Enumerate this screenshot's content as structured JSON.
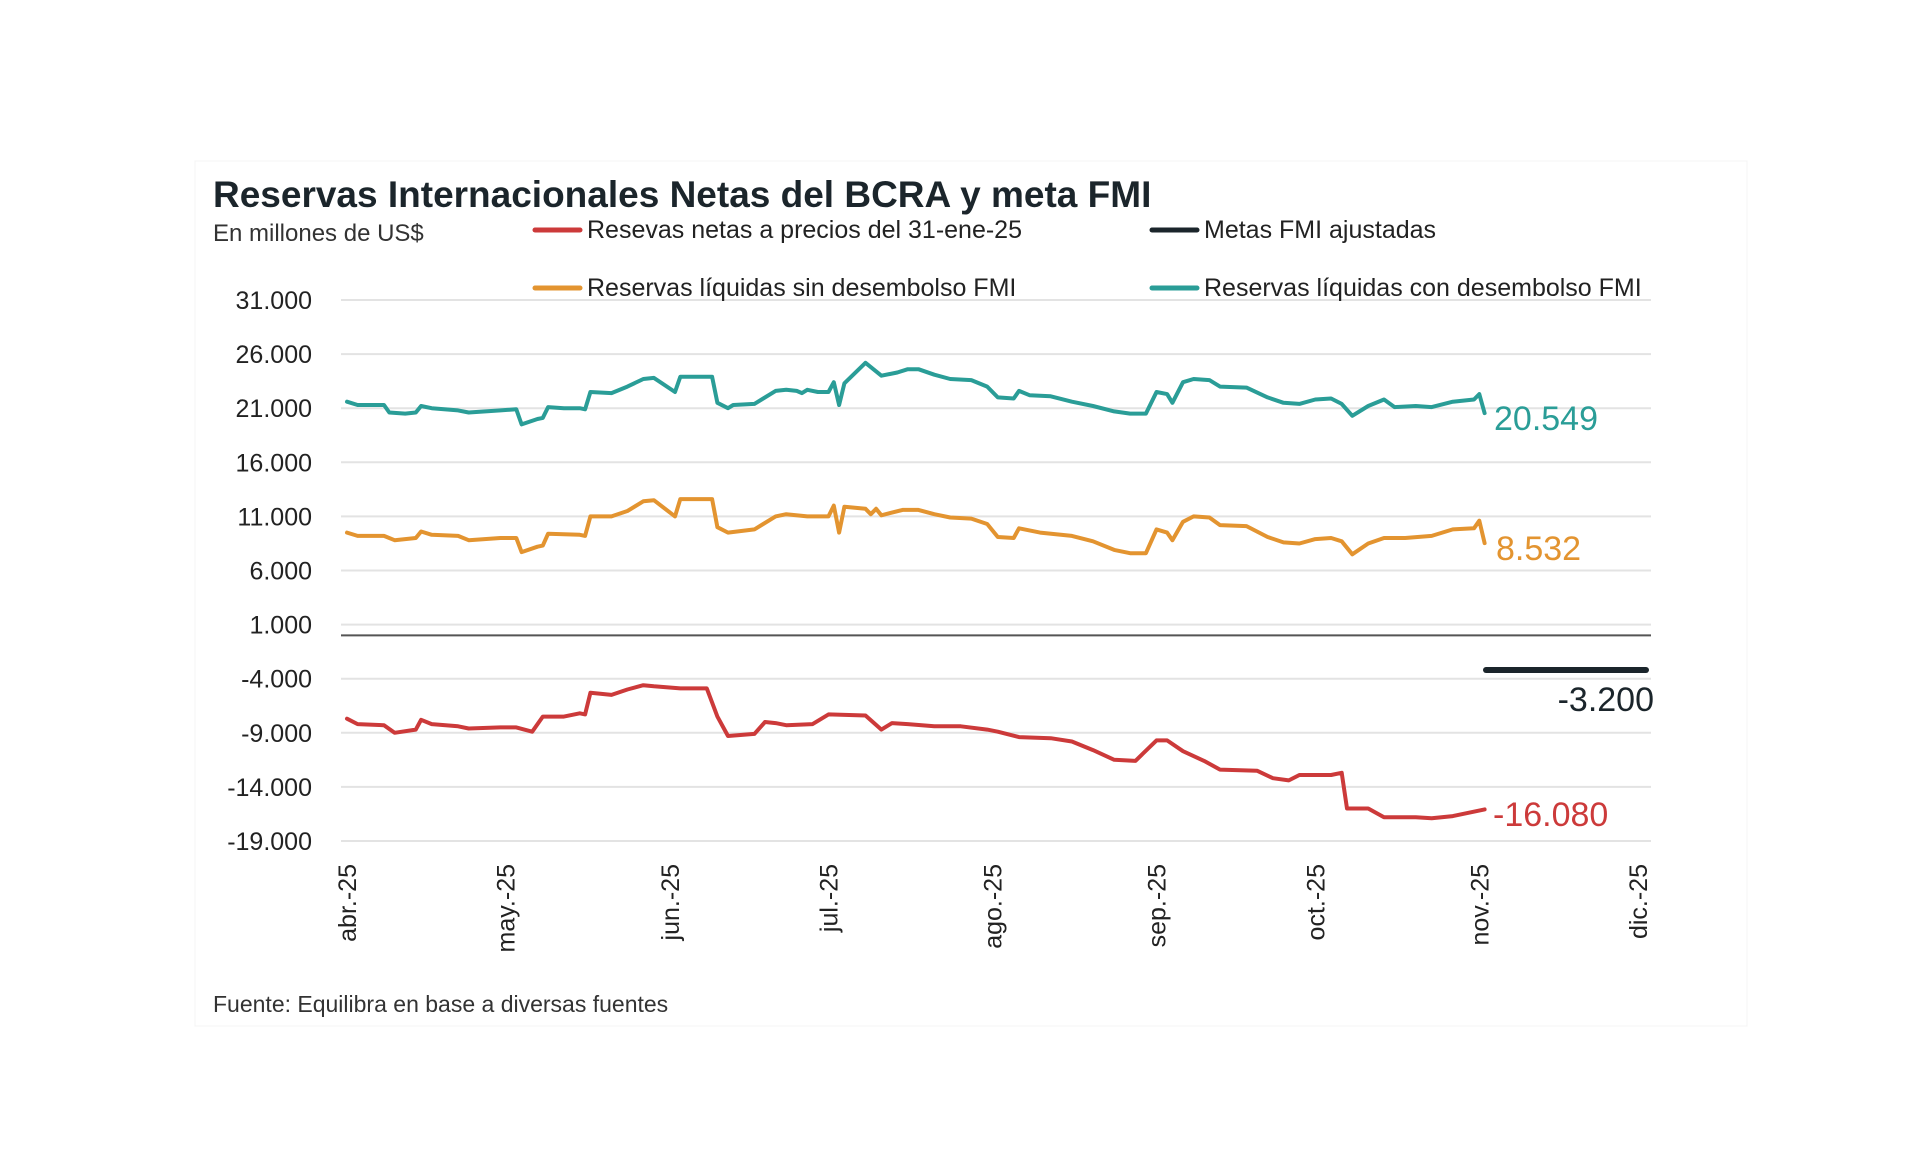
{
  "chart_data": {
    "type": "line",
    "title": "Reservas Internacionales Netas del BCRA y meta FMI",
    "subtitle": "En millones de US$",
    "source": "Fuente: Equilibra en base a diversas fuentes",
    "ylim": [
      -19000,
      31000
    ],
    "yticks": [
      "31.000",
      "26.000",
      "21.000",
      "16.000",
      "11.000",
      "6.000",
      "1.000",
      "-4.000",
      "-9.000",
      "-14.000",
      "-19.000"
    ],
    "ytick_values": [
      31000,
      26000,
      21000,
      16000,
      11000,
      6000,
      1000,
      -4000,
      -9000,
      -14000,
      -19000
    ],
    "xticks": [
      "abr.-25",
      "may.-25",
      "jun.-25",
      "jul.-25",
      "ago.-25",
      "sep.-25",
      "oct.-25",
      "nov.-25",
      "dic.-25"
    ],
    "xtick_dates": [
      "2025-04-01",
      "2025-05-01",
      "2025-06-01",
      "2025-07-01",
      "2025-08-01",
      "2025-09-01",
      "2025-10-01",
      "2025-11-01",
      "2025-12-01"
    ],
    "xlim": [
      "2025-04-01",
      "2025-12-01"
    ],
    "grid": true,
    "legend_position": "top",
    "series": [
      {
        "name": "Resevas netas a precios del 31-ene-25",
        "color": "#cc3a3a",
        "end_label": "-16.080",
        "x": [
          "04-01",
          "04-03",
          "04-08",
          "04-10",
          "04-14",
          "04-15",
          "04-17",
          "04-22",
          "04-24",
          "04-30",
          "05-03",
          "05-06",
          "05-08",
          "05-12",
          "05-15",
          "05-16",
          "05-17",
          "05-21",
          "05-24",
          "05-27",
          "05-29",
          "06-03",
          "06-08",
          "06-10",
          "06-12",
          "06-17",
          "06-19",
          "06-21",
          "06-23",
          "06-28",
          "07-01",
          "07-08",
          "07-11",
          "07-13",
          "07-16",
          "07-21",
          "07-26",
          "07-31",
          "08-02",
          "08-06",
          "08-12",
          "08-16",
          "08-20",
          "08-24",
          "08-28",
          "09-01",
          "09-03",
          "09-06",
          "09-10",
          "09-13",
          "09-20",
          "09-23",
          "09-26",
          "09-28",
          "10-04",
          "10-06",
          "10-07",
          "10-11",
          "10-14",
          "10-20",
          "10-23",
          "10-27",
          "11-02"
        ],
        "y": [
          -7700,
          -8200,
          -8300,
          -9000,
          -8700,
          -7800,
          -8200,
          -8400,
          -8600,
          -8500,
          -8500,
          -8900,
          -7500,
          -7500,
          -7200,
          -7300,
          -5300,
          -5500,
          -5000,
          -4600,
          -4700,
          -4900,
          -4900,
          -7500,
          -9300,
          -9100,
          -8000,
          -8100,
          -8300,
          -8200,
          -7300,
          -7400,
          -8700,
          -8100,
          -8200,
          -8400,
          -8400,
          -8700,
          -8900,
          -9400,
          -9500,
          -9800,
          -10600,
          -11500,
          -11600,
          -9700,
          -9700,
          -10700,
          -11600,
          -12400,
          -12500,
          -13200,
          -13400,
          -12900,
          -12900,
          -12700,
          -16000,
          -16000,
          -16800,
          -16800,
          -16900,
          -16700,
          -16080
        ]
      },
      {
        "name": "Metas FMI ajustadas",
        "color": "#1b252b",
        "end_label": "-3.200",
        "x": [
          "11-02",
          "12-01"
        ],
        "y": [
          -3200,
          -3200
        ]
      },
      {
        "name": "Reservas líquidas sin desembolso FMI",
        "color": "#e39430",
        "end_label": "8.532",
        "x": [
          "04-01",
          "04-03",
          "04-08",
          "04-10",
          "04-14",
          "04-15",
          "04-17",
          "04-22",
          "04-24",
          "04-30",
          "05-03",
          "05-04",
          "05-07",
          "05-08",
          "05-09",
          "05-15",
          "05-16",
          "05-17",
          "05-21",
          "05-24",
          "05-27",
          "05-29",
          "06-02",
          "06-03",
          "06-09",
          "06-10",
          "06-12",
          "06-17",
          "06-21",
          "06-23",
          "06-27",
          "07-01",
          "07-02",
          "07-03",
          "07-04",
          "07-08",
          "07-09",
          "07-10",
          "07-11",
          "07-15",
          "07-18",
          "07-21",
          "07-24",
          "07-28",
          "07-31",
          "08-02",
          "08-05",
          "08-06",
          "08-10",
          "08-16",
          "08-20",
          "08-24",
          "08-27",
          "08-30",
          "09-01",
          "09-03",
          "09-04",
          "09-06",
          "09-08",
          "09-11",
          "09-13",
          "09-18",
          "09-22",
          "09-25",
          "09-28",
          "10-01",
          "10-04",
          "10-06",
          "10-08",
          "10-11",
          "10-14",
          "10-18",
          "10-23",
          "10-27",
          "10-31",
          "11-01",
          "11-02"
        ],
        "y": [
          9500,
          9200,
          9200,
          8800,
          9000,
          9600,
          9300,
          9200,
          8800,
          9000,
          9000,
          7700,
          8200,
          8300,
          9400,
          9300,
          9200,
          11000,
          11000,
          11500,
          12400,
          12500,
          11000,
          12600,
          12600,
          10000,
          9500,
          9800,
          11000,
          11200,
          11000,
          11000,
          12000,
          9500,
          11900,
          11700,
          11200,
          11700,
          11100,
          11600,
          11600,
          11200,
          10900,
          10800,
          10300,
          9100,
          9000,
          9900,
          9500,
          9200,
          8700,
          7900,
          7600,
          7600,
          9800,
          9500,
          8800,
          10500,
          11000,
          10900,
          10200,
          10100,
          9100,
          8600,
          8500,
          8900,
          9000,
          8700,
          7500,
          8500,
          9000,
          9000,
          9200,
          9800,
          9900,
          10600,
          8532
        ]
      },
      {
        "name": "Reservas líquidas con desembolso FMI",
        "color": "#2a9d97",
        "end_label": "20.549",
        "x": [
          "04-01",
          "04-03",
          "04-08",
          "04-09",
          "04-12",
          "04-14",
          "04-15",
          "04-17",
          "04-22",
          "04-24",
          "04-30",
          "05-03",
          "05-04",
          "05-07",
          "05-08",
          "05-09",
          "05-12",
          "05-15",
          "05-16",
          "05-17",
          "05-21",
          "05-24",
          "05-27",
          "05-29",
          "06-02",
          "06-03",
          "06-09",
          "06-10",
          "06-12",
          "06-13",
          "06-17",
          "06-21",
          "06-23",
          "06-25",
          "06-26",
          "06-27",
          "06-29",
          "07-01",
          "07-02",
          "07-03",
          "07-04",
          "07-08",
          "07-11",
          "07-14",
          "07-16",
          "07-18",
          "07-21",
          "07-24",
          "07-28",
          "07-31",
          "08-02",
          "08-05",
          "08-06",
          "08-08",
          "08-12",
          "08-16",
          "08-20",
          "08-24",
          "08-27",
          "08-30",
          "09-01",
          "09-03",
          "09-04",
          "09-06",
          "09-08",
          "09-11",
          "09-13",
          "09-18",
          "09-22",
          "09-25",
          "09-28",
          "10-01",
          "10-04",
          "10-06",
          "10-08",
          "10-11",
          "10-14",
          "10-16",
          "10-20",
          "10-23",
          "10-27",
          "10-31",
          "11-01",
          "11-02"
        ],
        "y": [
          21600,
          21300,
          21300,
          20600,
          20500,
          20600,
          21200,
          21000,
          20800,
          20600,
          20800,
          20900,
          19500,
          20000,
          20100,
          21100,
          21000,
          21000,
          20900,
          22500,
          22400,
          23000,
          23700,
          23800,
          22500,
          23900,
          23900,
          21500,
          21000,
          21300,
          21400,
          22600,
          22700,
          22600,
          22400,
          22700,
          22500,
          22500,
          23400,
          21300,
          23300,
          25200,
          24000,
          24300,
          24600,
          24600,
          24100,
          23700,
          23600,
          23000,
          22000,
          21900,
          22600,
          22200,
          22100,
          21600,
          21200,
          20700,
          20500,
          20500,
          22500,
          22300,
          21500,
          23400,
          23700,
          23600,
          23000,
          22900,
          22000,
          21500,
          21400,
          21800,
          21900,
          21400,
          20300,
          21200,
          21800,
          21100,
          21200,
          21100,
          21600,
          21800,
          22300,
          20549
        ]
      }
    ]
  }
}
